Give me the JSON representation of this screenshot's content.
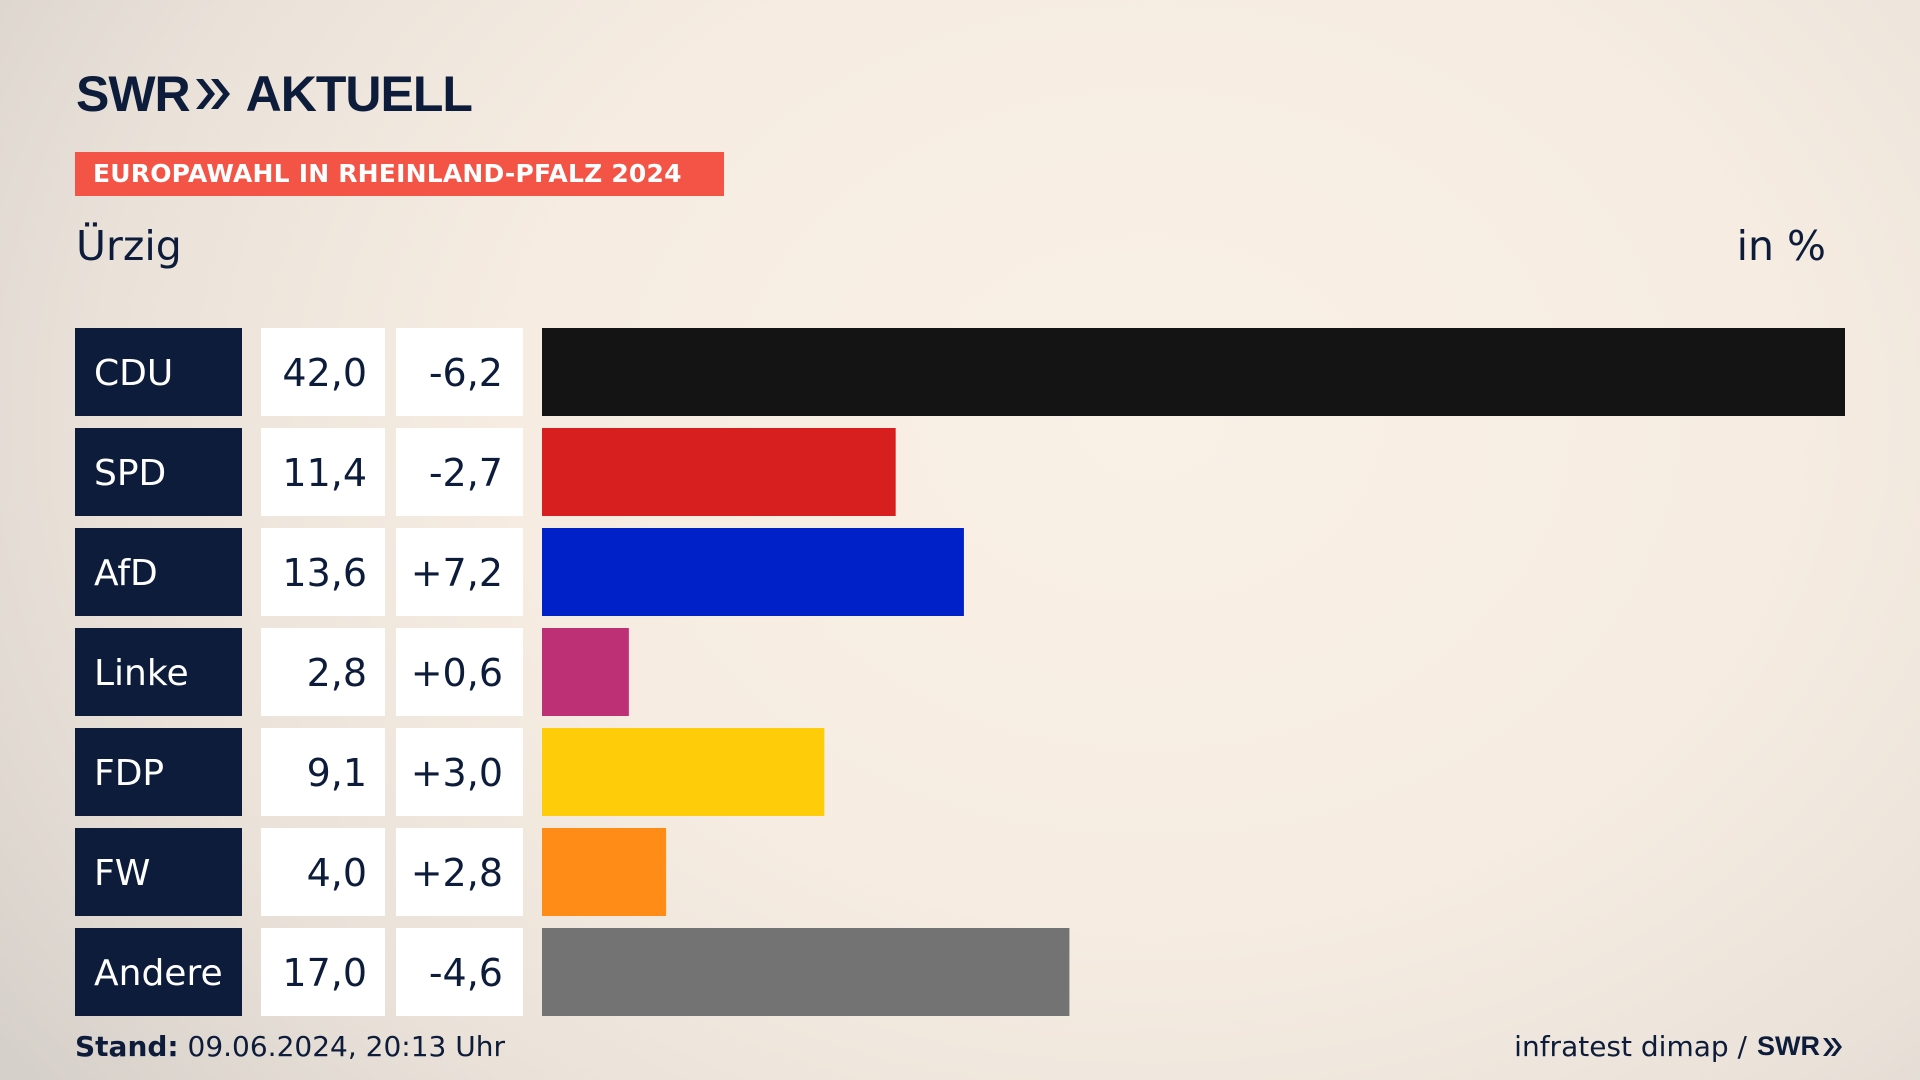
{
  "header": {
    "logo_left": "SWR",
    "logo_right": "AKTUELL",
    "banner": "EUROPAWAHL IN RHEINLAND-PFALZ 2024",
    "place": "Ürzig",
    "unit": "in %"
  },
  "colors": {
    "label_bg": "#0d1c3a",
    "banner_bg": "#f35445"
  },
  "chart_data": {
    "type": "bar",
    "orientation": "horizontal",
    "title": "Europawahl in Rheinland-Pfalz 2024 – Ürzig",
    "unit": "in %",
    "categories": [
      "CDU",
      "SPD",
      "AfD",
      "Linke",
      "FDP",
      "FW",
      "Andere"
    ],
    "values": [
      42.0,
      11.4,
      13.6,
      2.8,
      9.1,
      4.0,
      17.0
    ],
    "values_text": [
      "42,0",
      "11,4",
      "13,6",
      "2,8",
      "9,1",
      "4,0",
      "17,0"
    ],
    "changes_text": [
      "-6,2",
      "-2,7",
      "+7,2",
      "+0,6",
      "+3,0",
      "+2,8",
      "-4,6"
    ],
    "bar_colors": [
      "#141414",
      "#d71f1f",
      "#0020c8",
      "#be3075",
      "#ffcc0a",
      "#ff8c16",
      "#737373"
    ],
    "xlim": [
      0,
      42.0
    ]
  },
  "footer": {
    "stand_label": "Stand:",
    "stand_value": " 09.06.2024, 20:13 Uhr",
    "source": "infratest dimap /",
    "source_logo": "SWR"
  }
}
